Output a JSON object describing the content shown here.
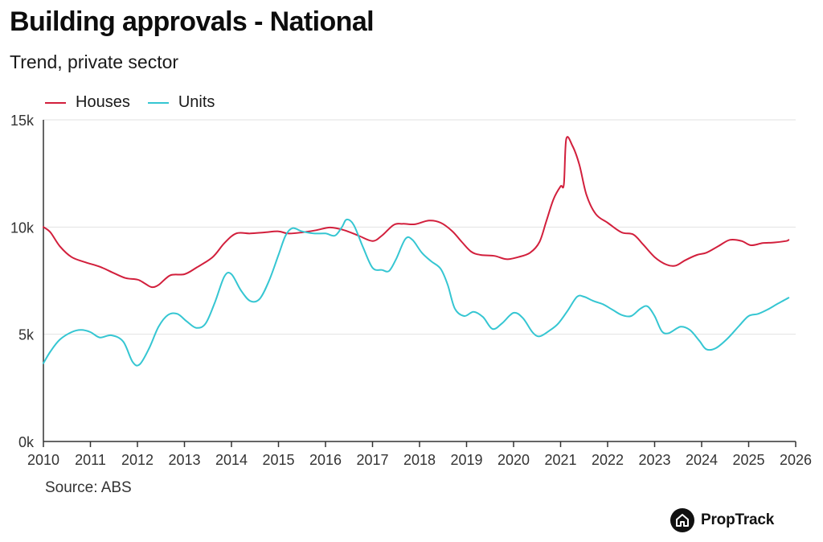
{
  "header": {
    "title": "Building approvals - National",
    "subtitle": "Trend, private sector"
  },
  "source": "Source: ABS",
  "brand": {
    "name": "PropTrack",
    "icon": "house-icon"
  },
  "chart_data": {
    "type": "line",
    "title": "Building approvals - National",
    "subtitle": "Trend, private sector",
    "xlabel": "",
    "ylabel": "",
    "xlim": [
      2010,
      2026
    ],
    "ylim": [
      0,
      15000
    ],
    "x_ticks": [
      "2010",
      "2011",
      "2012",
      "2013",
      "2014",
      "2015",
      "2016",
      "2017",
      "2018",
      "2019",
      "2020",
      "2021",
      "2022",
      "2023",
      "2024",
      "2025",
      "2026"
    ],
    "y_ticks": [
      {
        "value": 0,
        "label": "0k"
      },
      {
        "value": 5000,
        "label": "5k"
      },
      {
        "value": 10000,
        "label": "10k"
      },
      {
        "value": 15000,
        "label": "15k"
      }
    ],
    "grid": "horizontal",
    "legend_position": "top-left",
    "series": [
      {
        "name": "Houses",
        "color": "#d21f3c",
        "points": [
          [
            2010.0,
            10000
          ],
          [
            2010.15,
            9750
          ],
          [
            2010.35,
            9100
          ],
          [
            2010.6,
            8600
          ],
          [
            2010.9,
            8350
          ],
          [
            2011.2,
            8150
          ],
          [
            2011.5,
            7850
          ],
          [
            2011.75,
            7620
          ],
          [
            2012.0,
            7550
          ],
          [
            2012.15,
            7380
          ],
          [
            2012.3,
            7200
          ],
          [
            2012.45,
            7300
          ],
          [
            2012.7,
            7750
          ],
          [
            2013.0,
            7800
          ],
          [
            2013.25,
            8100
          ],
          [
            2013.6,
            8600
          ],
          [
            2013.85,
            9250
          ],
          [
            2014.1,
            9700
          ],
          [
            2014.4,
            9700
          ],
          [
            2014.7,
            9750
          ],
          [
            2015.0,
            9800
          ],
          [
            2015.2,
            9700
          ],
          [
            2015.5,
            9750
          ],
          [
            2015.8,
            9850
          ],
          [
            2016.1,
            9980
          ],
          [
            2016.4,
            9850
          ],
          [
            2016.7,
            9600
          ],
          [
            2017.0,
            9350
          ],
          [
            2017.2,
            9600
          ],
          [
            2017.45,
            10100
          ],
          [
            2017.65,
            10150
          ],
          [
            2017.9,
            10130
          ],
          [
            2018.2,
            10300
          ],
          [
            2018.45,
            10200
          ],
          [
            2018.7,
            9800
          ],
          [
            2018.9,
            9300
          ],
          [
            2019.1,
            8850
          ],
          [
            2019.3,
            8700
          ],
          [
            2019.6,
            8650
          ],
          [
            2019.85,
            8500
          ],
          [
            2020.1,
            8600
          ],
          [
            2020.35,
            8800
          ],
          [
            2020.55,
            9300
          ],
          [
            2020.7,
            10300
          ],
          [
            2020.85,
            11300
          ],
          [
            2021.0,
            11900
          ],
          [
            2021.07,
            12000
          ],
          [
            2021.12,
            14100
          ],
          [
            2021.25,
            13800
          ],
          [
            2021.4,
            12900
          ],
          [
            2021.55,
            11500
          ],
          [
            2021.75,
            10600
          ],
          [
            2022.0,
            10200
          ],
          [
            2022.3,
            9750
          ],
          [
            2022.55,
            9650
          ],
          [
            2022.75,
            9200
          ],
          [
            2023.0,
            8600
          ],
          [
            2023.25,
            8250
          ],
          [
            2023.45,
            8200
          ],
          [
            2023.65,
            8450
          ],
          [
            2023.9,
            8700
          ],
          [
            2024.1,
            8800
          ],
          [
            2024.35,
            9100
          ],
          [
            2024.6,
            9400
          ],
          [
            2024.85,
            9350
          ],
          [
            2025.05,
            9150
          ],
          [
            2025.3,
            9250
          ],
          [
            2025.55,
            9280
          ],
          [
            2025.8,
            9350
          ],
          [
            2025.85,
            9400
          ]
        ]
      },
      {
        "name": "Units",
        "color": "#35c6d2",
        "points": [
          [
            2010.0,
            3650
          ],
          [
            2010.15,
            4200
          ],
          [
            2010.35,
            4750
          ],
          [
            2010.6,
            5100
          ],
          [
            2010.8,
            5200
          ],
          [
            2011.0,
            5100
          ],
          [
            2011.2,
            4850
          ],
          [
            2011.45,
            4950
          ],
          [
            2011.7,
            4650
          ],
          [
            2011.9,
            3700
          ],
          [
            2012.05,
            3600
          ],
          [
            2012.25,
            4350
          ],
          [
            2012.45,
            5350
          ],
          [
            2012.65,
            5900
          ],
          [
            2012.85,
            5950
          ],
          [
            2013.05,
            5600
          ],
          [
            2013.25,
            5300
          ],
          [
            2013.45,
            5500
          ],
          [
            2013.65,
            6500
          ],
          [
            2013.85,
            7700
          ],
          [
            2014.0,
            7800
          ],
          [
            2014.2,
            7050
          ],
          [
            2014.4,
            6550
          ],
          [
            2014.6,
            6650
          ],
          [
            2014.8,
            7500
          ],
          [
            2015.0,
            8700
          ],
          [
            2015.15,
            9600
          ],
          [
            2015.3,
            9950
          ],
          [
            2015.5,
            9800
          ],
          [
            2015.75,
            9700
          ],
          [
            2016.0,
            9700
          ],
          [
            2016.2,
            9600
          ],
          [
            2016.35,
            10000
          ],
          [
            2016.45,
            10350
          ],
          [
            2016.6,
            10100
          ],
          [
            2016.8,
            9050
          ],
          [
            2017.0,
            8100
          ],
          [
            2017.2,
            8000
          ],
          [
            2017.35,
            7950
          ],
          [
            2017.5,
            8500
          ],
          [
            2017.7,
            9450
          ],
          [
            2017.85,
            9400
          ],
          [
            2018.05,
            8800
          ],
          [
            2018.25,
            8400
          ],
          [
            2018.45,
            8050
          ],
          [
            2018.6,
            7300
          ],
          [
            2018.75,
            6200
          ],
          [
            2018.95,
            5850
          ],
          [
            2019.15,
            6050
          ],
          [
            2019.35,
            5800
          ],
          [
            2019.55,
            5250
          ],
          [
            2019.75,
            5500
          ],
          [
            2020.0,
            6000
          ],
          [
            2020.2,
            5750
          ],
          [
            2020.4,
            5100
          ],
          [
            2020.55,
            4900
          ],
          [
            2020.75,
            5150
          ],
          [
            2020.95,
            5500
          ],
          [
            2021.15,
            6100
          ],
          [
            2021.35,
            6750
          ],
          [
            2021.5,
            6750
          ],
          [
            2021.7,
            6550
          ],
          [
            2021.9,
            6400
          ],
          [
            2022.1,
            6150
          ],
          [
            2022.3,
            5900
          ],
          [
            2022.5,
            5850
          ],
          [
            2022.7,
            6200
          ],
          [
            2022.85,
            6300
          ],
          [
            2023.0,
            5850
          ],
          [
            2023.15,
            5150
          ],
          [
            2023.3,
            5050
          ],
          [
            2023.55,
            5350
          ],
          [
            2023.75,
            5200
          ],
          [
            2023.95,
            4700
          ],
          [
            2024.1,
            4300
          ],
          [
            2024.3,
            4350
          ],
          [
            2024.55,
            4800
          ],
          [
            2024.8,
            5400
          ],
          [
            2025.0,
            5850
          ],
          [
            2025.2,
            5950
          ],
          [
            2025.4,
            6150
          ],
          [
            2025.6,
            6400
          ],
          [
            2025.85,
            6700
          ]
        ]
      }
    ]
  }
}
